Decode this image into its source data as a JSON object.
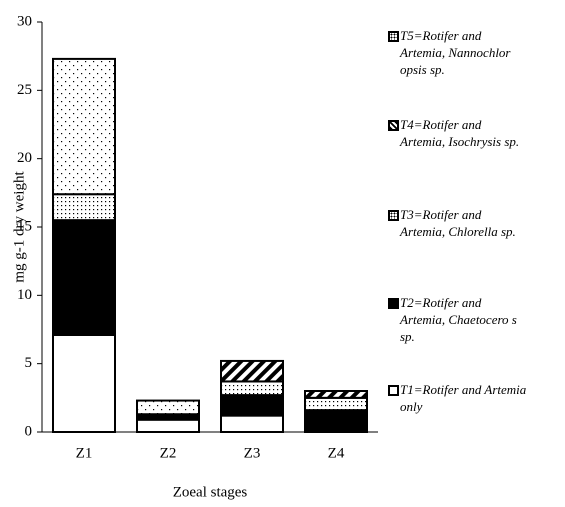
{
  "chart_data": {
    "type": "stacked-bar",
    "y_label": "mg g-1 dry weight",
    "x_label": "Zoeal stages",
    "categories": [
      "Z1",
      "Z2",
      "Z3",
      "Z4"
    ],
    "ylim": [
      0,
      30
    ],
    "yticks": [
      0,
      5,
      10,
      15,
      20,
      25,
      30
    ],
    "series": [
      {
        "name": "T1=Rotifer and Artemia only",
        "color": "#ffffff",
        "pattern": "none",
        "values": [
          7.1,
          0.9,
          1.2,
          0
        ]
      },
      {
        "name": "T2=Rotifer and Artemia, Chaetocero s sp.",
        "color": "#000000",
        "pattern": "none",
        "values": [
          8.4,
          0.4,
          1.5,
          1.6
        ]
      },
      {
        "name": "T3=Rotifer and Artemia, Chlorella sp.",
        "color": "#ffffff",
        "pattern": "dense-dots",
        "values": [
          1.9,
          0,
          1.0,
          0.9
        ]
      },
      {
        "name": "T4=Rotifer and Artemia, Isochrysis sp.",
        "color": "#ffffff",
        "pattern": "stripes",
        "values": [
          0,
          0,
          1.5,
          0.5
        ]
      },
      {
        "name": "T5=Rotifer and Artemia, Nannochlor opsis sp.",
        "color": "#ffffff",
        "pattern": "sparse-dots",
        "values": [
          9.9,
          1.0,
          0,
          0
        ]
      }
    ]
  }
}
